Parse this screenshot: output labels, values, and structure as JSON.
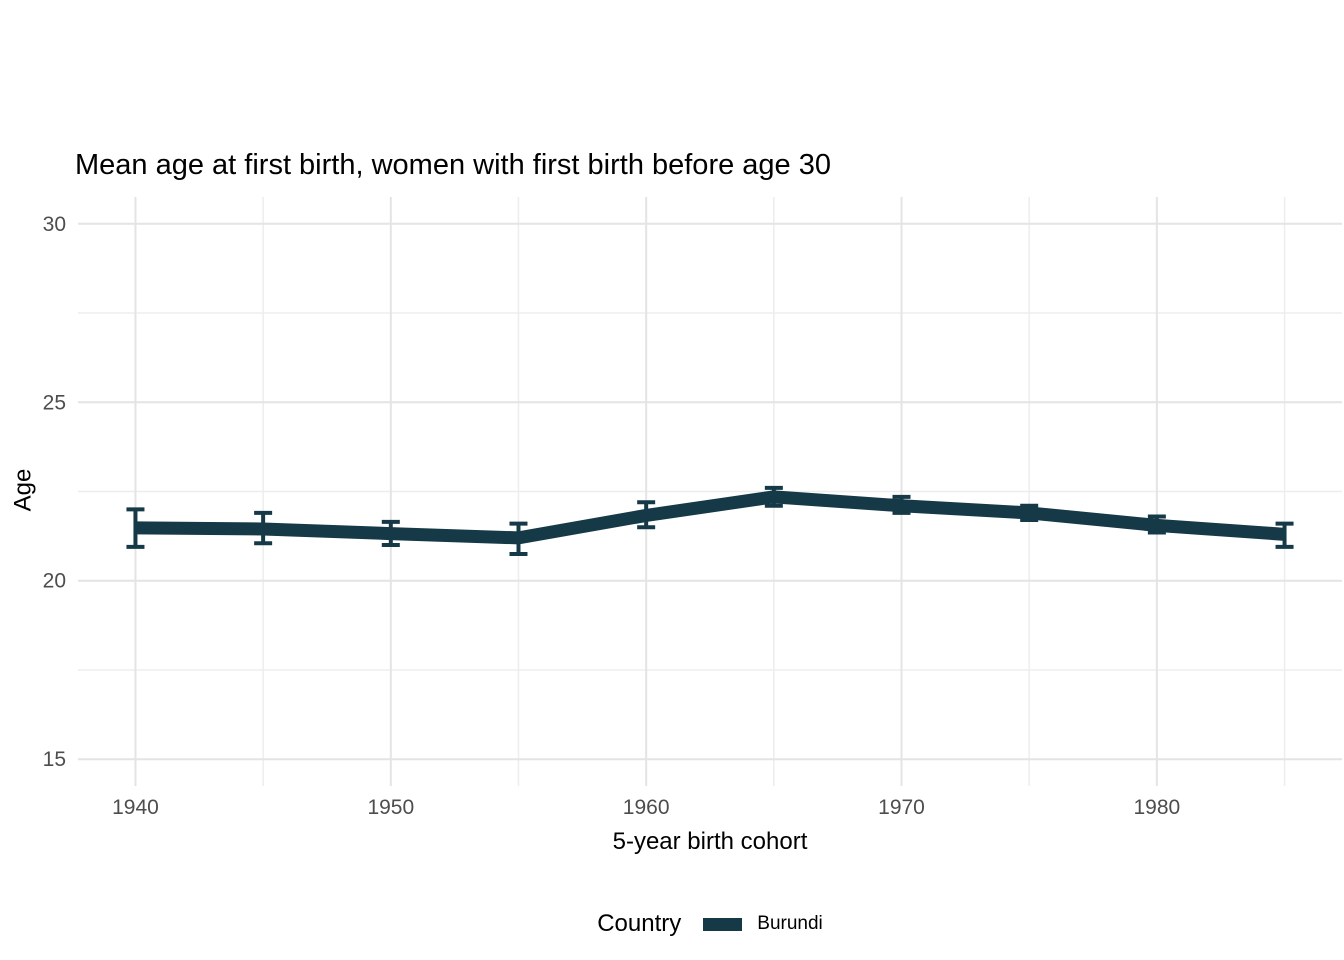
{
  "chart_data": {
    "type": "line",
    "title": "Mean age at first birth, women with first birth before age 30",
    "xlabel": "5-year birth cohort",
    "ylabel": "Age",
    "x": [
      1940,
      1945,
      1950,
      1955,
      1960,
      1965,
      1970,
      1975,
      1980,
      1985
    ],
    "series": [
      {
        "name": "Burundi",
        "color": "#163948",
        "values": [
          21.48,
          21.45,
          21.32,
          21.2,
          21.83,
          22.35,
          22.1,
          21.9,
          21.55,
          21.3
        ],
        "ci_low": [
          20.95,
          21.05,
          21.0,
          20.75,
          21.5,
          22.1,
          21.9,
          21.7,
          21.35,
          20.95
        ],
        "ci_high": [
          22.0,
          21.9,
          21.65,
          21.6,
          22.2,
          22.6,
          22.35,
          22.1,
          21.8,
          21.6
        ]
      }
    ],
    "x_ticks": [
      1940,
      1950,
      1960,
      1970,
      1980
    ],
    "x_minor_ticks": [
      1945,
      1955,
      1965,
      1975,
      1985
    ],
    "y_ticks": [
      15,
      20,
      25,
      30
    ],
    "y_minor_ticks": [
      17.5,
      22.5,
      27.5
    ],
    "xlim": [
      1937.75,
      1987.25
    ],
    "ylim": [
      14.25,
      30.75
    ],
    "grid": "on",
    "legend": {
      "title": "Country",
      "position": "bottom",
      "entries": [
        {
          "label": "Burundi",
          "color": "#163948"
        }
      ]
    },
    "colors": {
      "axis_text": "#4d4d4d",
      "title_text": "#000000",
      "grid_major": "#e4e4e4",
      "grid_minor": "#ededed",
      "background": "#ffffff"
    }
  }
}
